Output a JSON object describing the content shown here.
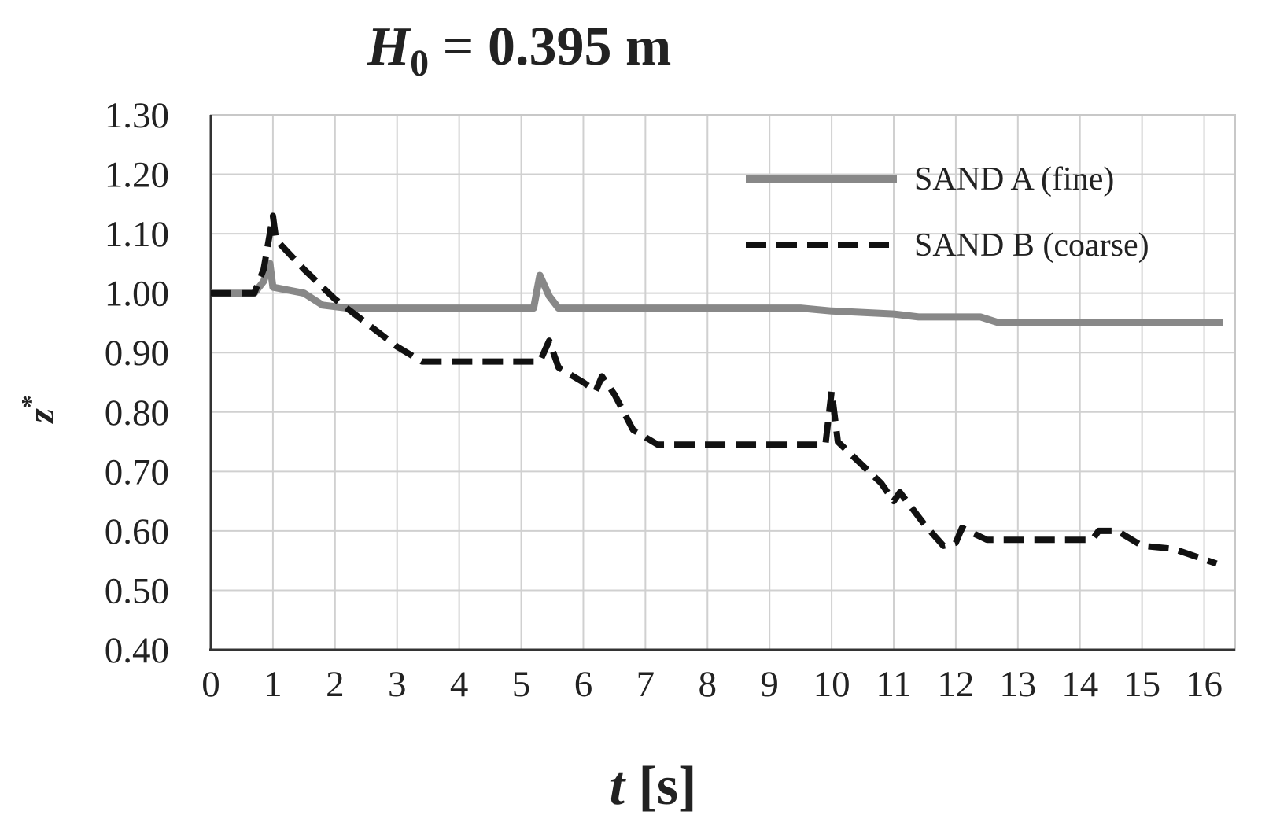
{
  "chart_data": {
    "type": "line",
    "title": {
      "var": "H",
      "sub": "0",
      "rest": " = 0.395 m"
    },
    "xlabel": {
      "var": "t",
      "rest": " [s]"
    },
    "ylabel": {
      "var": "z",
      "sup": "*"
    },
    "xlim": [
      0,
      16.5
    ],
    "ylim": [
      0.4,
      1.3
    ],
    "x_ticks": [
      "0",
      "1",
      "2",
      "3",
      "4",
      "5",
      "6",
      "7",
      "8",
      "9",
      "10",
      "11",
      "12",
      "13",
      "14",
      "15",
      "16"
    ],
    "y_ticks": [
      "0.40",
      "0.50",
      "0.60",
      "0.70",
      "0.80",
      "0.90",
      "1.00",
      "1.10",
      "1.20",
      "1.30"
    ],
    "grid": true,
    "legend": "top-right",
    "series": [
      {
        "name": "SAND A (fine)",
        "color": "#888888",
        "style": "solid",
        "points": [
          [
            0,
            1.0
          ],
          [
            0.7,
            1.0
          ],
          [
            0.85,
            1.02
          ],
          [
            0.95,
            1.05
          ],
          [
            1.0,
            1.01
          ],
          [
            1.5,
            1.0
          ],
          [
            1.8,
            0.98
          ],
          [
            2.2,
            0.975
          ],
          [
            3.0,
            0.975
          ],
          [
            4.0,
            0.975
          ],
          [
            5.2,
            0.975
          ],
          [
            5.3,
            1.03
          ],
          [
            5.45,
            0.995
          ],
          [
            5.6,
            0.975
          ],
          [
            7.0,
            0.975
          ],
          [
            9.5,
            0.975
          ],
          [
            10.0,
            0.97
          ],
          [
            11.0,
            0.965
          ],
          [
            11.4,
            0.96
          ],
          [
            12.4,
            0.96
          ],
          [
            12.7,
            0.95
          ],
          [
            14.0,
            0.95
          ],
          [
            16.3,
            0.95
          ]
        ]
      },
      {
        "name": "SAND B (coarse)",
        "color": "#111111",
        "style": "dashed",
        "points": [
          [
            0,
            1.0
          ],
          [
            0.7,
            1.0
          ],
          [
            0.85,
            1.04
          ],
          [
            1.0,
            1.13
          ],
          [
            1.05,
            1.09
          ],
          [
            1.5,
            1.04
          ],
          [
            2.0,
            0.99
          ],
          [
            2.5,
            0.95
          ],
          [
            3.0,
            0.91
          ],
          [
            3.4,
            0.885
          ],
          [
            4.0,
            0.885
          ],
          [
            5.0,
            0.885
          ],
          [
            5.3,
            0.885
          ],
          [
            5.45,
            0.92
          ],
          [
            5.6,
            0.875
          ],
          [
            6.0,
            0.85
          ],
          [
            6.2,
            0.835
          ],
          [
            6.3,
            0.86
          ],
          [
            6.5,
            0.83
          ],
          [
            6.8,
            0.77
          ],
          [
            7.2,
            0.745
          ],
          [
            8.0,
            0.745
          ],
          [
            9.0,
            0.745
          ],
          [
            9.9,
            0.745
          ],
          [
            10.0,
            0.835
          ],
          [
            10.1,
            0.75
          ],
          [
            10.5,
            0.71
          ],
          [
            10.8,
            0.68
          ],
          [
            11.0,
            0.65
          ],
          [
            11.1,
            0.665
          ],
          [
            11.5,
            0.61
          ],
          [
            11.8,
            0.575
          ],
          [
            12.0,
            0.58
          ],
          [
            12.1,
            0.605
          ],
          [
            12.5,
            0.585
          ],
          [
            13.0,
            0.585
          ],
          [
            14.0,
            0.585
          ],
          [
            14.2,
            0.585
          ],
          [
            14.3,
            0.6
          ],
          [
            14.6,
            0.6
          ],
          [
            15.0,
            0.575
          ],
          [
            15.5,
            0.57
          ],
          [
            16.2,
            0.545
          ]
        ]
      }
    ]
  }
}
